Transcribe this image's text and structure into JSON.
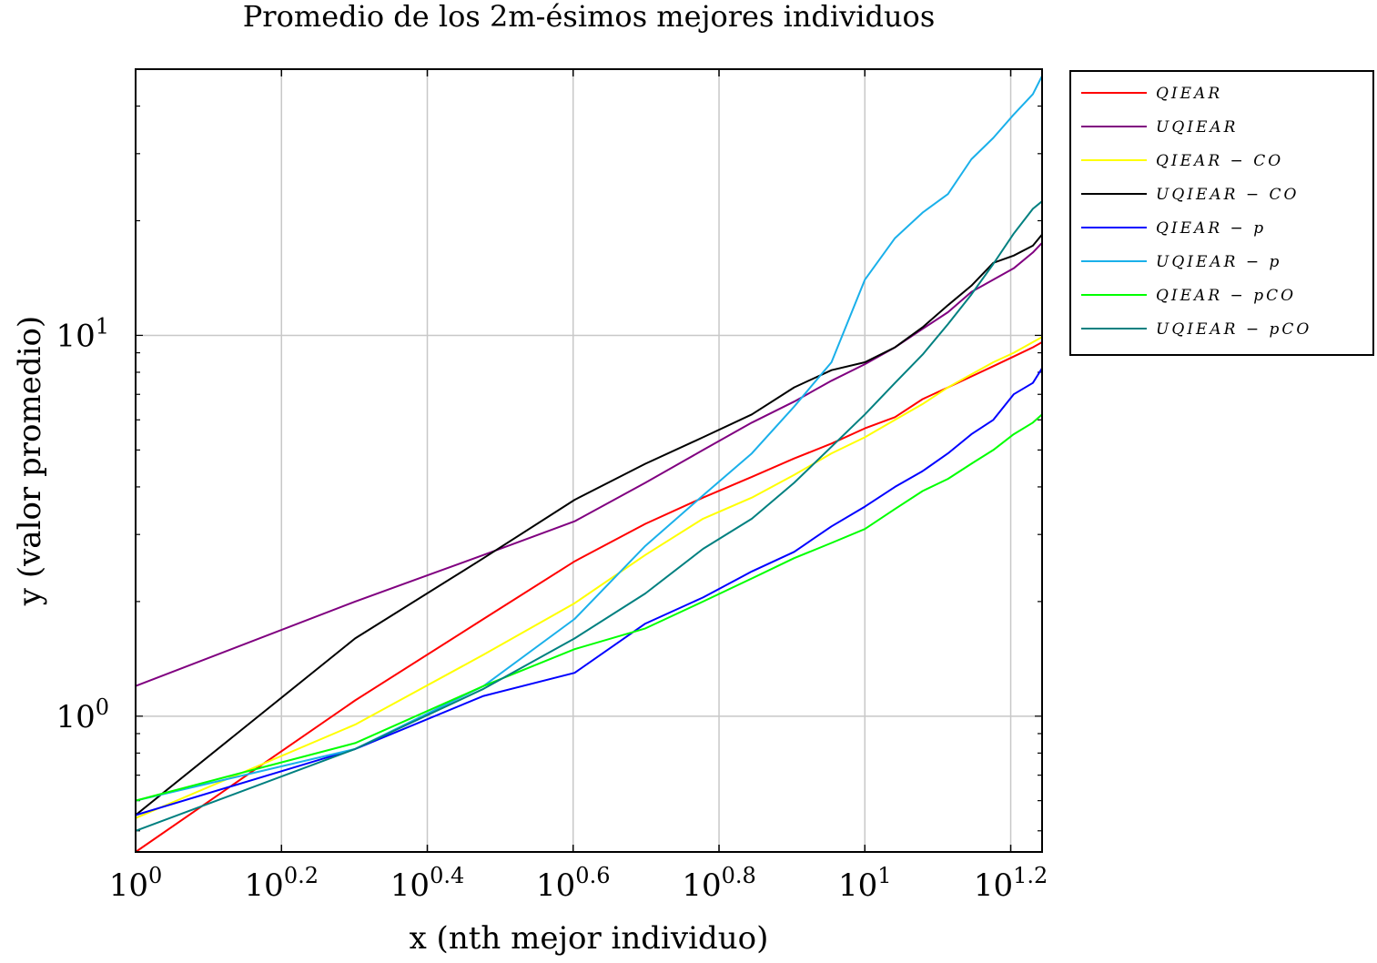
{
  "chart_data": {
    "type": "line",
    "title": "Promedio de los 2m-ésimos mejores individuos",
    "xlabel": "x (nth mejor individuo)",
    "ylabel": "y (valor promedio)",
    "xscale": "log",
    "yscale": "log",
    "xlim": [
      1,
      17.5
    ],
    "ylim": [
      0.44,
      50
    ],
    "grid": true,
    "legend_position": "outside-right",
    "x_ticks": [
      {
        "base": "10",
        "exp": "0",
        "value": 1
      },
      {
        "base": "10",
        "exp": "0.2",
        "value": 1.585
      },
      {
        "base": "10",
        "exp": "0.4",
        "value": 2.512
      },
      {
        "base": "10",
        "exp": "0.6",
        "value": 3.981
      },
      {
        "base": "10",
        "exp": "0.8",
        "value": 6.31
      },
      {
        "base": "10",
        "exp": "1",
        "value": 10
      },
      {
        "base": "10",
        "exp": "1.2",
        "value": 15.85
      }
    ],
    "y_ticks": [
      {
        "base": "10",
        "exp": "0",
        "value": 1
      },
      {
        "base": "10",
        "exp": "1",
        "value": 10
      }
    ],
    "series": [
      {
        "name": "QIEAR",
        "color": "#ff0000",
        "x": [
          1,
          2,
          3,
          4,
          5,
          6,
          7,
          8,
          9,
          10,
          11,
          12,
          13,
          14,
          15,
          16,
          17,
          17.5
        ],
        "y": [
          0.44,
          1.1,
          1.8,
          2.55,
          3.2,
          3.75,
          4.25,
          4.75,
          5.2,
          5.7,
          6.1,
          6.8,
          7.3,
          7.8,
          8.3,
          8.8,
          9.3,
          9.6
        ]
      },
      {
        "name": "UQIEAR",
        "color": "#800080",
        "x": [
          1,
          2,
          3,
          4,
          5,
          6,
          7,
          8,
          9,
          10,
          11,
          12,
          13,
          14,
          15,
          16,
          17,
          17.5
        ],
        "y": [
          1.2,
          2.0,
          2.65,
          3.25,
          4.1,
          5.0,
          5.9,
          6.7,
          7.6,
          8.4,
          9.3,
          10.4,
          11.5,
          13.0,
          14.0,
          15.0,
          16.5,
          17.5
        ]
      },
      {
        "name": "QIEAR − CO",
        "color": "#ffff00",
        "x": [
          1,
          2,
          3,
          4,
          5,
          6,
          7,
          8,
          9,
          10,
          11,
          12,
          13,
          14,
          15,
          16,
          17,
          17.5
        ],
        "y": [
          0.54,
          0.95,
          1.45,
          1.98,
          2.65,
          3.3,
          3.75,
          4.3,
          4.9,
          5.4,
          6.0,
          6.6,
          7.3,
          7.9,
          8.5,
          9.0,
          9.6,
          9.9
        ]
      },
      {
        "name": "UQIEAR − CO",
        "color": "#000000",
        "x": [
          1,
          2,
          3,
          4,
          5,
          6,
          7,
          8,
          9,
          10,
          11,
          12,
          13,
          14,
          15,
          16,
          17,
          17.5
        ],
        "y": [
          0.55,
          1.6,
          2.6,
          3.7,
          4.6,
          5.4,
          6.2,
          7.3,
          8.1,
          8.5,
          9.3,
          10.5,
          12.0,
          13.5,
          15.5,
          16.2,
          17.2,
          18.4
        ]
      },
      {
        "name": "QIEAR − p",
        "color": "#0000ff",
        "x": [
          1,
          2,
          3,
          4,
          5,
          6,
          7,
          8,
          9,
          10,
          11,
          12,
          13,
          14,
          15,
          16,
          17,
          17.5
        ],
        "y": [
          0.55,
          0.82,
          1.13,
          1.3,
          1.75,
          2.05,
          2.4,
          2.7,
          3.15,
          3.55,
          4.0,
          4.4,
          4.9,
          5.5,
          6.0,
          7.0,
          7.5,
          8.2
        ]
      },
      {
        "name": "UQIEAR − p",
        "color": "#1ab0ea",
        "x": [
          1,
          2,
          3,
          4,
          5,
          6,
          7,
          8,
          9,
          10,
          11,
          12,
          13,
          14,
          15,
          16,
          17,
          17.5
        ],
        "y": [
          0.6,
          0.82,
          1.2,
          1.8,
          2.8,
          3.8,
          4.9,
          6.5,
          8.5,
          14.0,
          18.0,
          21.0,
          23.5,
          29.0,
          33.0,
          38.0,
          43.0,
          48.0
        ]
      },
      {
        "name": "QIEAR − pCO",
        "color": "#00ff00",
        "x": [
          1,
          2,
          3,
          4,
          5,
          6,
          7,
          8,
          9,
          10,
          11,
          12,
          13,
          14,
          15,
          16,
          17,
          17.5
        ],
        "y": [
          0.6,
          0.85,
          1.2,
          1.5,
          1.7,
          2.0,
          2.3,
          2.6,
          2.85,
          3.1,
          3.5,
          3.9,
          4.2,
          4.6,
          5.0,
          5.5,
          5.9,
          6.2
        ]
      },
      {
        "name": "UQIEAR − pCO",
        "color": "#008080",
        "x": [
          1,
          2,
          3,
          4,
          5,
          6,
          7,
          8,
          9,
          10,
          11,
          12,
          13,
          14,
          15,
          16,
          17,
          17.5
        ],
        "y": [
          0.5,
          0.82,
          1.18,
          1.6,
          2.1,
          2.75,
          3.3,
          4.1,
          5.1,
          6.2,
          7.5,
          8.9,
          10.7,
          12.8,
          15.4,
          18.5,
          21.5,
          22.5
        ]
      }
    ]
  }
}
